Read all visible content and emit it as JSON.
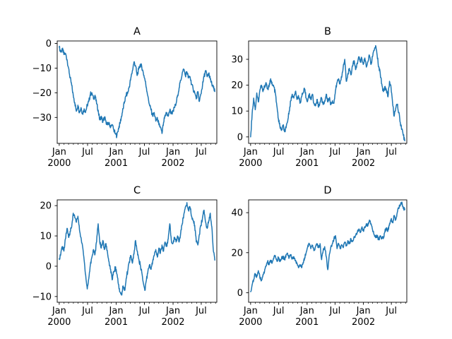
{
  "figure": {
    "background": "#ffffff",
    "series_color": "#1f77b4",
    "axis_color": "#000000",
    "tick_label_color": "#000000"
  },
  "calendar": {
    "xlim_days": [
      -13,
      1012
    ],
    "end_day": 999,
    "month_start_days": [
      0,
      31,
      60,
      91,
      121,
      152,
      182,
      213,
      244,
      274,
      305,
      335,
      366,
      397,
      425,
      456,
      486,
      517,
      547,
      578,
      609,
      639,
      670,
      700,
      731,
      762,
      790,
      821,
      851,
      882,
      912,
      943,
      974,
      1004
    ],
    "major_ticks": [
      {
        "day": 0,
        "line1": "Jan",
        "line2": "2000"
      },
      {
        "day": 182,
        "line1": "Jul",
        "line2": ""
      },
      {
        "day": 366,
        "line1": "Jan",
        "line2": "2001"
      },
      {
        "day": 547,
        "line1": "Jul",
        "line2": ""
      },
      {
        "day": 731,
        "line1": "Jan",
        "line2": "2002"
      },
      {
        "day": 912,
        "line1": "Jul",
        "line2": ""
      }
    ]
  },
  "chart_data": [
    {
      "type": "line",
      "title": "A",
      "legend": null,
      "grid": false,
      "ylim": [
        -40.5,
        1.0
      ],
      "yticks": [
        0,
        -10,
        -20,
        -30
      ],
      "x_step_days": 10,
      "noise_amplitude": 0.9,
      "values": [
        -1.5,
        -3.5,
        -2,
        -4.5,
        -4,
        -6.5,
        -10,
        -14,
        -17,
        -21,
        -24,
        -27.5,
        -25,
        -28,
        -26,
        -28.5,
        -26.5,
        -27.5,
        -25,
        -23.5,
        -20.5,
        -20,
        -22.5,
        -21,
        -24.5,
        -27,
        -31,
        -29.5,
        -32,
        -30,
        -31.5,
        -33,
        -32,
        -34,
        -33,
        -35,
        -36.5,
        -37.5,
        -34.5,
        -32.5,
        -29.5,
        -26.5,
        -23.5,
        -21,
        -20,
        -17.5,
        -14,
        -11,
        -7.5,
        -9,
        -13,
        -10.5,
        -8.5,
        -9.5,
        -12,
        -14.5,
        -18,
        -21.5,
        -25,
        -27,
        -29.5,
        -28,
        -31.5,
        -30,
        -33,
        -34,
        -36.5,
        -32,
        -29.5,
        -28,
        -29.5,
        -27,
        -28.5,
        -27.5,
        -26,
        -24.5,
        -21,
        -18,
        -15,
        -12,
        -10.5,
        -13,
        -11.5,
        -14,
        -13.5,
        -16.5,
        -18.5,
        -20,
        -22.5,
        -19.5,
        -23.5,
        -20.5,
        -17,
        -13.5,
        -11,
        -13.5,
        -12,
        -14.5,
        -16.5,
        -18,
        -19.5
      ]
    },
    {
      "type": "line",
      "title": "B",
      "legend": null,
      "grid": false,
      "ylim": [
        -2.5,
        37.1
      ],
      "yticks": [
        0,
        10,
        20,
        30
      ],
      "x_step_days": 10,
      "noise_amplitude": 0.8,
      "values": [
        0,
        9,
        15,
        10.5,
        17,
        13.5,
        18,
        20,
        17.5,
        19.5,
        21,
        18.5,
        19.5,
        22.5,
        20,
        19.5,
        17,
        12,
        7,
        4,
        2.5,
        4.5,
        2,
        3.5,
        6,
        10,
        14,
        16.5,
        15,
        17.5,
        14.5,
        16,
        13,
        15.5,
        17,
        18.5,
        15,
        14,
        16.5,
        14.5,
        16.5,
        13,
        12,
        14.5,
        11.5,
        13.5,
        15,
        12.5,
        14,
        16.5,
        13.5,
        15,
        12.5,
        14,
        13,
        18,
        21,
        22.5,
        20.5,
        23,
        27,
        30,
        21.5,
        24.5,
        26.5,
        24,
        27.5,
        29.5,
        26,
        28.5,
        31,
        29,
        30.5,
        28,
        30.5,
        27,
        29,
        31.5,
        28,
        31,
        33.5,
        35.3,
        31.5,
        27,
        24.5,
        20.5,
        17.5,
        19.5,
        18,
        15.5,
        21.5,
        19,
        13,
        8,
        11,
        12.5,
        9.5,
        5.5,
        3,
        0.5,
        -1.5
      ]
    },
    {
      "type": "line",
      "title": "C",
      "legend": null,
      "grid": false,
      "ylim": [
        -11.9,
        21.9
      ],
      "yticks": [
        20,
        10,
        0,
        -10
      ],
      "x_step_days": 10,
      "noise_amplitude": 0.7,
      "values": [
        2.5,
        4,
        6.5,
        5,
        9,
        12.5,
        9.5,
        11.5,
        13,
        17.5,
        16,
        14.5,
        16.5,
        12,
        9.5,
        6.5,
        2,
        -3,
        -7.5,
        -4,
        0.5,
        3,
        5.5,
        4,
        8,
        14,
        8,
        6,
        8.5,
        5.5,
        7.5,
        4.5,
        1.5,
        -1,
        -4.5,
        -2,
        -0.5,
        -2.5,
        -6,
        -8.5,
        -9.5,
        -6.5,
        -8,
        -4,
        -1.5,
        1.5,
        3.5,
        1,
        4,
        8.5,
        5,
        2.5,
        0.5,
        -2,
        -5.5,
        -8,
        -4.5,
        -1.5,
        0.5,
        -1,
        1.5,
        3.5,
        5.5,
        3,
        6,
        4.5,
        7,
        5,
        8,
        6.5,
        9,
        14,
        8.5,
        7.5,
        9.5,
        8,
        10,
        8,
        11,
        14,
        17,
        19.5,
        21,
        18.5,
        19.5,
        16.5,
        15,
        13.5,
        8,
        7,
        10.5,
        13.5,
        16,
        18.5,
        14.5,
        12.5,
        15,
        17.5,
        13,
        5,
        2
      ]
    },
    {
      "type": "line",
      "title": "D",
      "legend": null,
      "grid": false,
      "ylim": [
        -4.8,
        46.4
      ],
      "yticks": [
        0,
        20,
        40
      ],
      "x_step_days": 10,
      "noise_amplitude": 0.9,
      "values": [
        0.5,
        4,
        6.5,
        9.5,
        8,
        11,
        7.5,
        6,
        9,
        10.5,
        13.5,
        15.5,
        14,
        16,
        15,
        17,
        18.5,
        16,
        17.5,
        15.5,
        17,
        18,
        16.5,
        19,
        19.5,
        17.5,
        18.5,
        17,
        18,
        16,
        14.5,
        12.5,
        14,
        12.5,
        15,
        17.5,
        20,
        23,
        24.5,
        22,
        23.5,
        21,
        23,
        24.5,
        22.5,
        24.5,
        16.5,
        21,
        23,
        18,
        11.5,
        19,
        23,
        24.5,
        27,
        28.5,
        22,
        24.5,
        22,
        24,
        22.5,
        25,
        23.5,
        26,
        24.5,
        27,
        25.5,
        28,
        28.5,
        30,
        31.5,
        30,
        32.5,
        31,
        33,
        34.5,
        33.5,
        36.3,
        34.5,
        31.5,
        29,
        27.5,
        28.5,
        26.5,
        28.5,
        27.5,
        27,
        30.5,
        32.5,
        31,
        34.5,
        36.5,
        35,
        38.5,
        36.5,
        40,
        42.5,
        43.5,
        45.3,
        42,
        41.5
      ]
    }
  ]
}
